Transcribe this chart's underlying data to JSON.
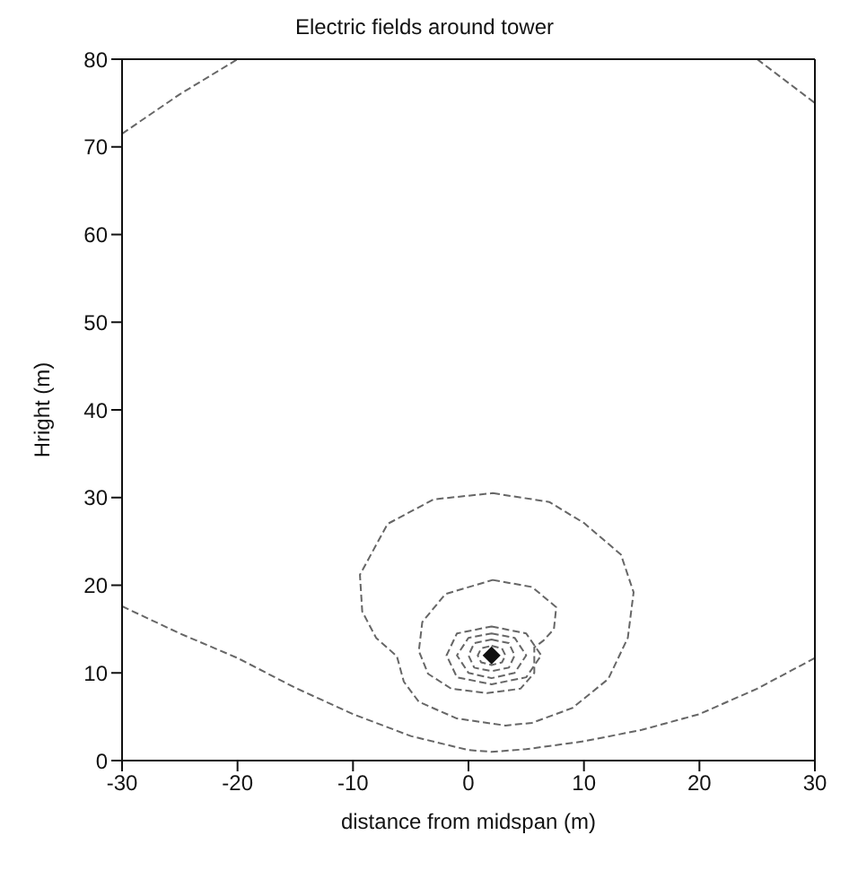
{
  "chart_data": {
    "type": "line",
    "title": "Electric fields around tower",
    "xlabel": "distance from midspan (m)",
    "ylabel": "Hright (m)",
    "xlim": [
      -30,
      30
    ],
    "ylim": [
      0,
      80
    ],
    "xticks": [
      -30,
      -20,
      -10,
      0,
      10,
      20,
      30
    ],
    "yticks": [
      0,
      10,
      20,
      30,
      40,
      50,
      60,
      70,
      80
    ],
    "grid": false,
    "marker": "none",
    "line_style": "dashed",
    "series": [
      {
        "color": "#666666",
        "x": [
          -30,
          -25,
          -20
        ],
        "values": [
          71.5,
          76,
          80
        ]
      },
      {
        "color": "#666666",
        "x": [
          25,
          30
        ],
        "values": [
          80,
          75
        ]
      },
      {
        "color": "#666666",
        "x": [
          -30,
          -25,
          -20,
          -15,
          -10,
          -5,
          0,
          2,
          5,
          10,
          15,
          20,
          25,
          30
        ],
        "values": [
          17.6,
          14.5,
          11.7,
          8.3,
          5.3,
          2.8,
          1.2,
          1.0,
          1.3,
          2.2,
          3.5,
          5.3,
          8.2,
          11.7
        ]
      },
      {
        "type": "scatter",
        "marker": "diamond",
        "color": "#111111",
        "x": [
          2
        ],
        "values": [
          12
        ]
      }
    ]
  }
}
